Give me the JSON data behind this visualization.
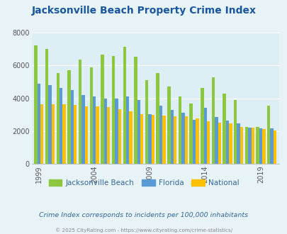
{
  "title": "Jacksonville Beach Property Crime Index",
  "title_color": "#1a56a0",
  "subtitle": "Crime Index corresponds to incidents per 100,000 inhabitants",
  "subtitle_color": "#336699",
  "copyright": "© 2025 CityRating.com - https://www.cityrating.com/crime-statistics/",
  "copyright_color": "#888888",
  "years": [
    1999,
    2000,
    2001,
    2002,
    2003,
    2004,
    2005,
    2006,
    2007,
    2008,
    2009,
    2010,
    2011,
    2012,
    2013,
    2014,
    2015,
    2016,
    2017,
    2018,
    2019,
    2020
  ],
  "jacksonville_beach": [
    7250,
    7000,
    5550,
    5700,
    6350,
    5900,
    6650,
    6600,
    7150,
    6550,
    5100,
    5550,
    4700,
    4100,
    3700,
    4650,
    5300,
    4300,
    3900,
    2250,
    2250,
    3550
  ],
  "florida": [
    4900,
    4800,
    4650,
    4500,
    4200,
    4100,
    4000,
    4000,
    4100,
    3900,
    3050,
    3550,
    3300,
    3100,
    2700,
    3400,
    2850,
    2650,
    2450,
    2200,
    2150,
    2150
  ],
  "national": [
    3650,
    3650,
    3650,
    3600,
    3500,
    3500,
    3450,
    3350,
    3200,
    3050,
    3000,
    2950,
    2900,
    2900,
    2750,
    2600,
    2500,
    2450,
    2250,
    2200,
    2100,
    2050
  ],
  "jb_color": "#8dc63f",
  "fl_color": "#5b9bd5",
  "nat_color": "#ffc000",
  "bg_color": "#e8f3f8",
  "plot_bg_color": "#ddeef5",
  "ylim": [
    0,
    8000
  ],
  "yticks": [
    0,
    2000,
    4000,
    6000,
    8000
  ],
  "bar_width": 0.28,
  "legend_labels": [
    "Jacksonville Beach",
    "Florida",
    "National"
  ],
  "x_label_years": [
    1999,
    2004,
    2009,
    2014,
    2019
  ]
}
